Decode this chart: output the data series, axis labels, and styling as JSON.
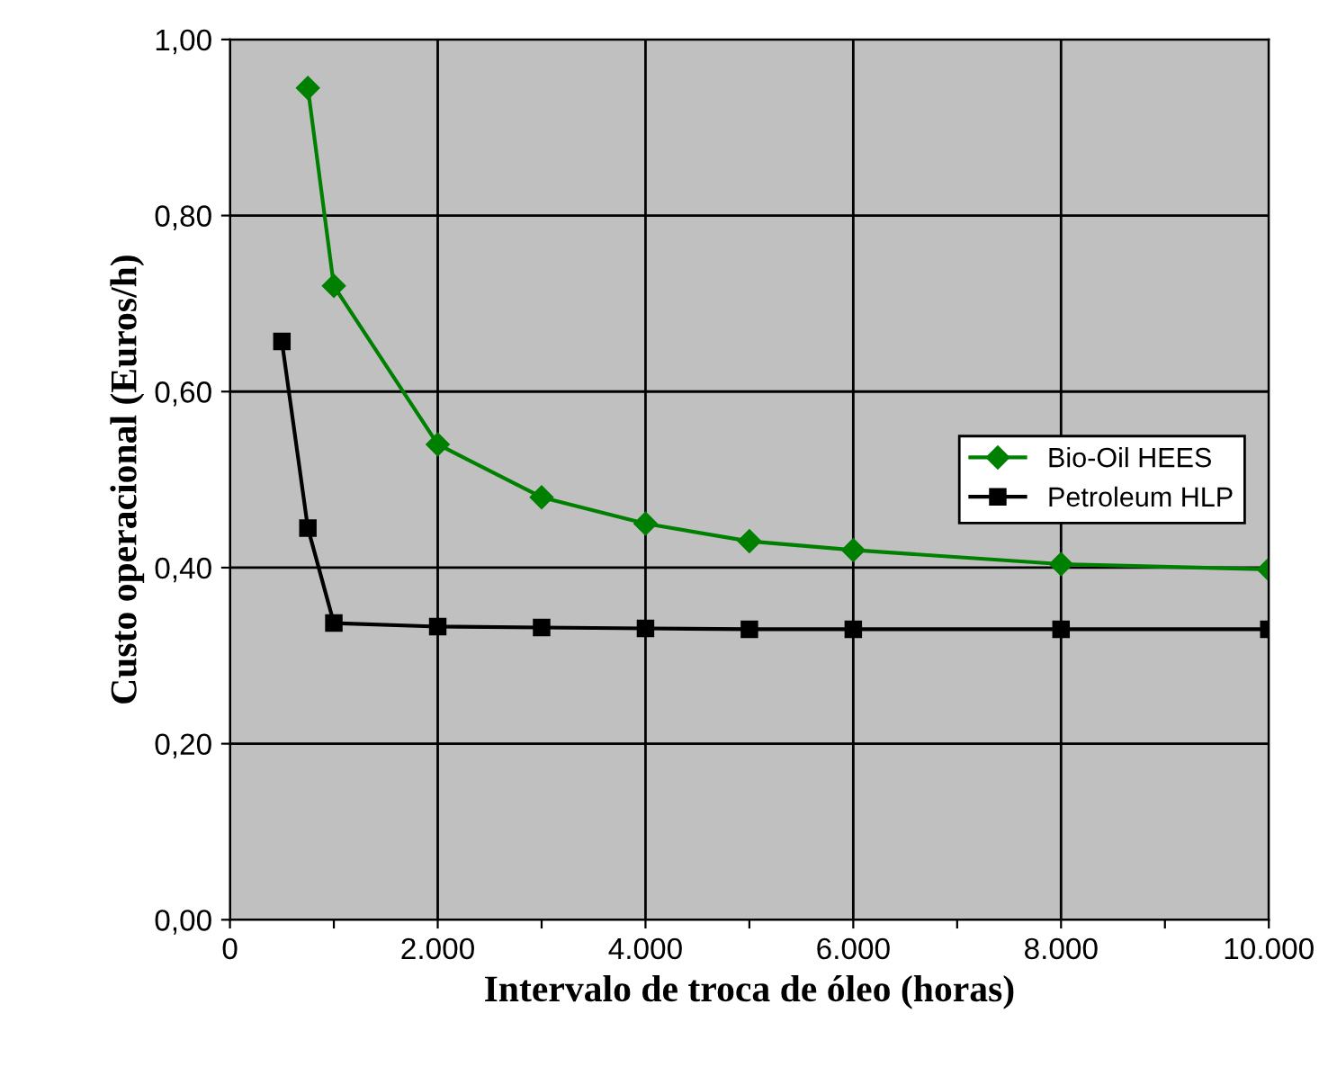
{
  "chart_data": {
    "type": "line",
    "xlabel": "Intervalo de troca de óleo (horas)",
    "ylabel": "Custo operacional (Euros/h)",
    "series": [
      {
        "name": "Bio-Oil HEES",
        "color": "#008000",
        "marker": "diamond",
        "x": [
          750,
          1000,
          2000,
          3000,
          4000,
          5000,
          6000,
          8000,
          10000
        ],
        "values": [
          0.945,
          0.72,
          0.54,
          0.48,
          0.45,
          0.43,
          0.42,
          0.404,
          0.398
        ]
      },
      {
        "name": "Petroleum HLP",
        "color": "#000000",
        "marker": "square",
        "x": [
          500,
          750,
          1000,
          2000,
          3000,
          4000,
          5000,
          6000,
          8000,
          10000
        ],
        "values": [
          0.657,
          0.445,
          0.337,
          0.333,
          0.332,
          0.331,
          0.33,
          0.33,
          0.33,
          0.33
        ]
      }
    ],
    "xlim": [
      0,
      10000
    ],
    "xticks": [
      {
        "value": 0,
        "label": "0"
      },
      {
        "value": 1000,
        "label": null
      },
      {
        "value": 2000,
        "label": "2.000"
      },
      {
        "value": 3000,
        "label": null
      },
      {
        "value": 4000,
        "label": "4.000"
      },
      {
        "value": 5000,
        "label": null
      },
      {
        "value": 6000,
        "label": "6.000"
      },
      {
        "value": 7000,
        "label": null
      },
      {
        "value": 8000,
        "label": "8.000"
      },
      {
        "value": 9000,
        "label": null
      },
      {
        "value": 10000,
        "label": "10.000"
      }
    ],
    "ylim": [
      0,
      1
    ],
    "yticks": [
      {
        "value": 0,
        "label": "0,00"
      },
      {
        "value": 0.2,
        "label": "0,20"
      },
      {
        "value": 0.4,
        "label": "0,40"
      },
      {
        "value": 0.6,
        "label": "0,60"
      },
      {
        "value": 0.8,
        "label": "0,80"
      },
      {
        "value": 1.0,
        "label": "1,00"
      }
    ],
    "grid": true,
    "legend": "center right",
    "line_style": "solid"
  }
}
